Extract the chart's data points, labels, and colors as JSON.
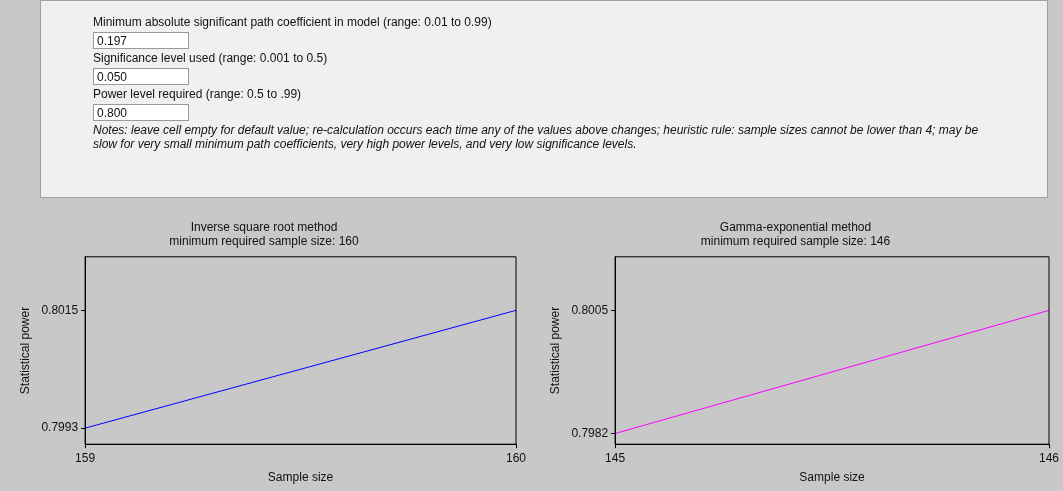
{
  "chart_data": [
    {
      "type": "other",
      "annotations": [
        "Minimum absolute significant path coefficient in model (range: 0.01 to 0.99)",
        "0.197",
        "Significance level used (range: 0.001 to 0.5)",
        "0.050",
        "Power level required (range: 0.5 to .99)",
        "0.800",
        "Notes: leave cell empty for default value; re-calculation occurs each time any of the values above changes; heuristic rule: sample sizes cannot be lower than 4; may be slow for very small minimum path coefficients, very high power levels, and very low significance levels."
      ]
    },
    {
      "type": "line",
      "title": "Inverse square root method",
      "subtitle": "minimum required sample size: 160",
      "xlabel": "Sample size",
      "ylabel": "Statistical power",
      "x": [
        159,
        160
      ],
      "series": [
        {
          "color": "#0000ff",
          "values": [
            0.7993,
            0.8015
          ]
        }
      ],
      "xlim": [
        159,
        160
      ],
      "xticks": [
        159,
        160
      ],
      "ylim": [
        0.799,
        0.8025
      ],
      "yticks": [
        0.7993,
        0.8015
      ],
      "grid": false,
      "marker": "none"
    },
    {
      "type": "line",
      "title": "Gamma-exponential method",
      "subtitle": "minimum required sample size: 146",
      "xlabel": "Sample size",
      "ylabel": "Statistical power",
      "x": [
        145,
        146
      ],
      "series": [
        {
          "color": "#ff00ff",
          "values": [
            0.7982,
            0.8005
          ]
        }
      ],
      "xlim": [
        145,
        146
      ],
      "xticks": [
        145,
        146
      ],
      "ylim": [
        0.798,
        0.8015
      ],
      "yticks": [
        0.7982,
        0.8005
      ],
      "grid": false,
      "marker": "none"
    }
  ]
}
